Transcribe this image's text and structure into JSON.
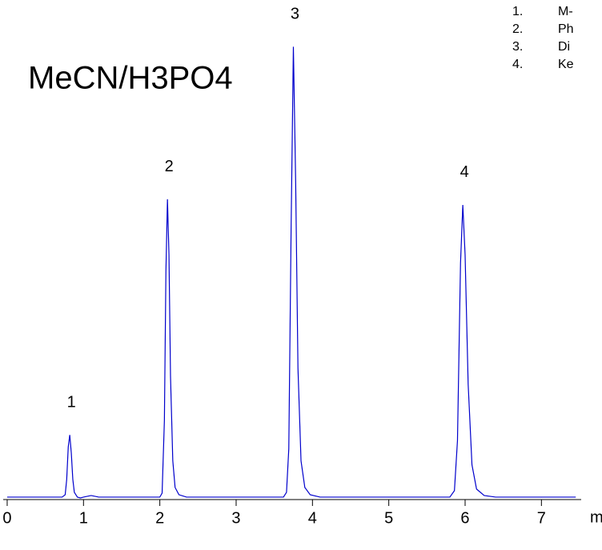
{
  "chart_data": {
    "type": "line",
    "title": "MeCN/H3PO4",
    "x_label": "min",
    "x": [
      0,
      0.5,
      0.72,
      0.76,
      0.78,
      0.8,
      0.82,
      0.84,
      0.86,
      0.88,
      0.92,
      0.96,
      1.0,
      1.1,
      1.2,
      2.0,
      2.03,
      2.06,
      2.08,
      2.1,
      2.12,
      2.14,
      2.17,
      2.2,
      2.25,
      2.35,
      3.62,
      3.66,
      3.69,
      3.72,
      3.75,
      3.78,
      3.81,
      3.85,
      3.9,
      3.97,
      4.1,
      5.8,
      5.86,
      5.9,
      5.94,
      5.97,
      6.0,
      6.04,
      6.09,
      6.15,
      6.25,
      6.4,
      7.45
    ],
    "series": [
      {
        "color": "#0000cc",
        "values": [
          0,
          0,
          0,
          3,
          22,
          62,
          77,
          55,
          22,
          6,
          0,
          -1,
          0,
          2,
          0,
          0,
          5,
          95,
          280,
          369,
          300,
          150,
          45,
          12,
          3,
          0,
          0,
          6,
          60,
          330,
          558,
          390,
          160,
          45,
          12,
          3,
          0,
          0,
          8,
          70,
          290,
          362,
          300,
          140,
          40,
          10,
          2,
          0,
          0
        ]
      }
    ],
    "peaks": [
      {
        "label": "1",
        "x": 0.82
      },
      {
        "label": "2",
        "x": 2.1
      },
      {
        "label": "3",
        "x": 3.75
      },
      {
        "label": "4",
        "x": 5.97
      }
    ],
    "legend": [
      {
        "number": "1.",
        "name": "M-"
      },
      {
        "number": "2.",
        "name": "Ph"
      },
      {
        "number": "3.",
        "name": "Di"
      },
      {
        "number": "4.",
        "name": "Ke"
      }
    ],
    "xlim": [
      -0.05,
      7.5
    ],
    "xticks": [
      0,
      1,
      2,
      3,
      4,
      5,
      6,
      7
    ],
    "ylim": [
      -5,
      600
    ]
  }
}
